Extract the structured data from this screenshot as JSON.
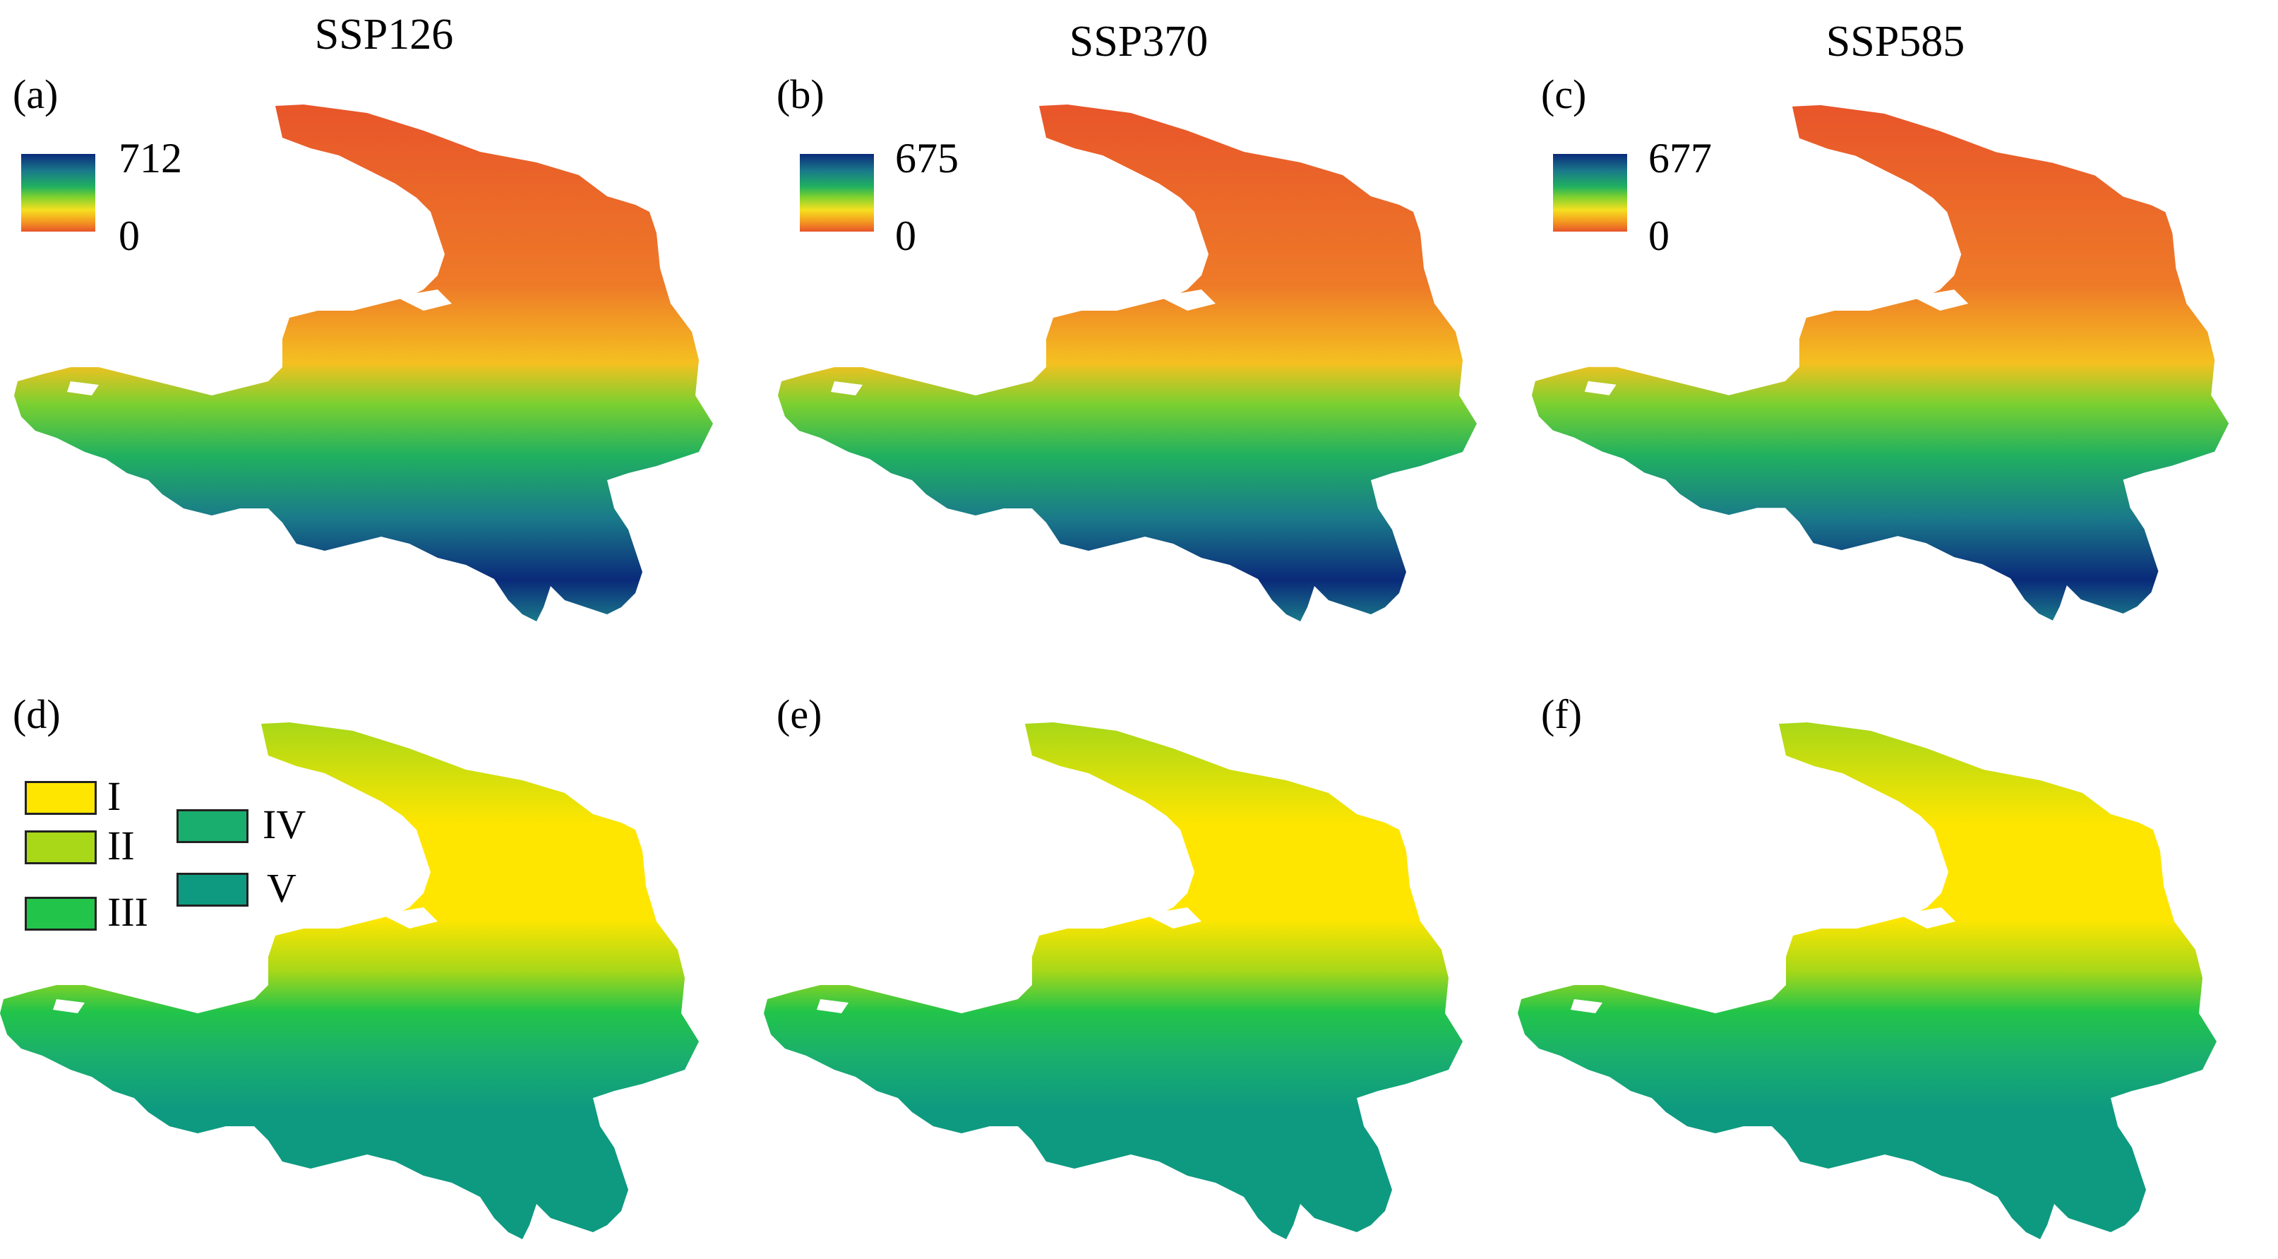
{
  "column_titles": [
    "SSP126",
    "SSP370",
    "SSP585"
  ],
  "panel_labels": [
    "(a)",
    "(b)",
    "(c)",
    "(d)",
    "(e)",
    "(f)"
  ],
  "colorbars": [
    {
      "max": "712",
      "min": "0"
    },
    {
      "max": "675",
      "min": "0"
    },
    {
      "max": "677",
      "min": "0"
    }
  ],
  "colors": {
    "high": "#0a2a7a",
    "mid": "#20b060",
    "low_mid": "#f5e020",
    "low": "#e8552a",
    "class_I": "#ffe600",
    "class_II": "#a8d818",
    "class_III": "#22c44a",
    "class_IV": "#1aae6e",
    "class_V": "#0d9a80"
  },
  "legend": {
    "classes": [
      {
        "label": "I",
        "color": "#ffe600"
      },
      {
        "label": "II",
        "color": "#a8d818"
      },
      {
        "label": "III",
        "color": "#22c44a"
      },
      {
        "label": "IV",
        "color": "#1aae6e"
      },
      {
        "label": "V",
        "color": "#0d9a80"
      }
    ]
  }
}
